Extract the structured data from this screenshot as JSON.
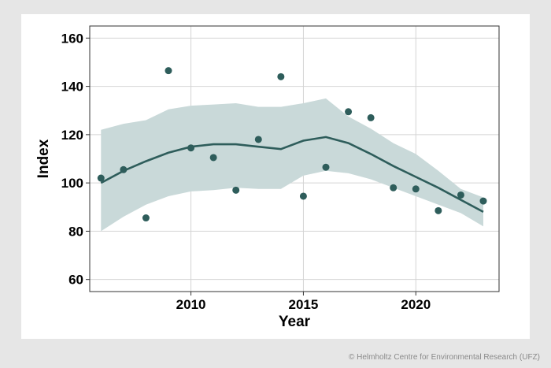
{
  "chart_data": {
    "type": "scatter",
    "title": "",
    "xlabel": "Year",
    "ylabel": "Index",
    "xlim": [
      2005.5,
      2023.7
    ],
    "ylim": [
      55,
      165
    ],
    "xticks": [
      2010,
      2015,
      2020
    ],
    "yticks": [
      60,
      80,
      100,
      120,
      140,
      160
    ],
    "grid": true,
    "legend": "none",
    "points": [
      {
        "x": 2006,
        "y": 102
      },
      {
        "x": 2007,
        "y": 105.5
      },
      {
        "x": 2008,
        "y": 85.5
      },
      {
        "x": 2009,
        "y": 146.5
      },
      {
        "x": 2010,
        "y": 114.5
      },
      {
        "x": 2011,
        "y": 110.5
      },
      {
        "x": 2012,
        "y": 97
      },
      {
        "x": 2013,
        "y": 118
      },
      {
        "x": 2014,
        "y": 144
      },
      {
        "x": 2015,
        "y": 94.5
      },
      {
        "x": 2016,
        "y": 106.5
      },
      {
        "x": 2017,
        "y": 129.5
      },
      {
        "x": 2018,
        "y": 127
      },
      {
        "x": 2019,
        "y": 98
      },
      {
        "x": 2020,
        "y": 97.5
      },
      {
        "x": 2021,
        "y": 88.5
      },
      {
        "x": 2022,
        "y": 95
      },
      {
        "x": 2023,
        "y": 92.5
      }
    ],
    "trend": {
      "x": [
        2006,
        2007,
        2008,
        2009,
        2010,
        2011,
        2012,
        2013,
        2014,
        2015,
        2016,
        2017,
        2018,
        2019,
        2020,
        2021,
        2022,
        2023
      ],
      "y": [
        100,
        105,
        109,
        112.5,
        115,
        116,
        116,
        115,
        114,
        117.5,
        119,
        116.5,
        112,
        107,
        102.5,
        98,
        93,
        88
      ],
      "lower": [
        80,
        86,
        91,
        94.5,
        96.5,
        97,
        98,
        97.5,
        97.5,
        103,
        105,
        104,
        101.5,
        98,
        94.5,
        91,
        87.5,
        82
      ],
      "upper": [
        122,
        124.5,
        126,
        130.5,
        132,
        132.5,
        133,
        131.5,
        131.5,
        133,
        135,
        127.5,
        122.5,
        116.5,
        112,
        105,
        97.5,
        94
      ]
    },
    "colors": {
      "points": "#2e5d5b",
      "trend_line": "#2e5d5b",
      "band": "#c9d9d9",
      "grid": "#d4d4d4",
      "panel_border": "#333333"
    }
  },
  "footer": {
    "copyright": "© Helmholtz Centre for Environmental Research (UFZ)"
  }
}
